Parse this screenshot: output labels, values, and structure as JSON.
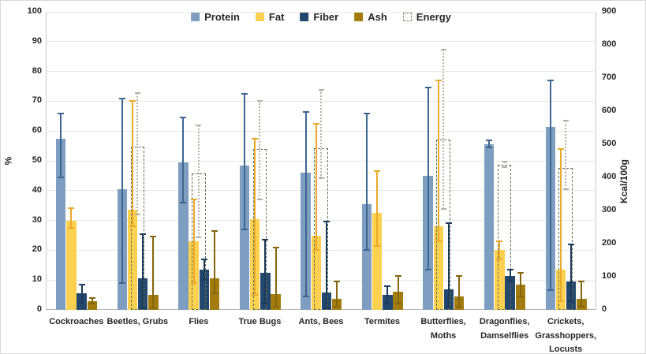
{
  "chart_data": {
    "type": "bar",
    "title": "",
    "left_axis": {
      "label": "%",
      "min": 0,
      "max": 100,
      "step": 10
    },
    "right_axis": {
      "label": "Kcal/100g",
      "min": 0,
      "max": 900,
      "step": 100
    },
    "grid": true,
    "legend_position": "top-center",
    "categories": [
      "Cockroaches",
      "Beetles, Grubs",
      "Flies",
      "True Bugs",
      "Ants, Bees",
      "Termites",
      "Butterflies,\nMoths",
      "Dragonflies,\nDamselflies",
      "Crickets,\nGrasshoppers,\nLocusts"
    ],
    "series": [
      {
        "name": "Protein",
        "axis": "left",
        "style": "solid",
        "color": "#7e9dc0",
        "error_color": "#3e6591",
        "values": [
          57.5,
          40.5,
          49.5,
          48.5,
          46.0,
          35.5,
          45.0,
          55.5,
          61.5
        ],
        "err_lo": [
          44.5,
          9.0,
          36.0,
          27.0,
          4.5,
          20.0,
          13.5,
          54.5,
          6.5
        ],
        "err_hi": [
          66.0,
          71.0,
          64.5,
          72.5,
          66.5,
          66.0,
          74.5,
          57.0,
          77.0
        ]
      },
      {
        "name": "Fat",
        "axis": "left",
        "style": "solid",
        "color": "#fcd150",
        "error_color": "#eaa92a",
        "values": [
          30.0,
          33.5,
          23.0,
          30.5,
          25.0,
          32.5,
          28.0,
          20.0,
          13.5
        ],
        "err_lo": [
          27.5,
          28.0,
          9.0,
          5.0,
          20.0,
          21.5,
          23.0,
          17.0,
          3.0
        ],
        "err_hi": [
          34.0,
          70.0,
          37.0,
          57.5,
          62.5,
          46.5,
          77.0,
          23.0,
          54.0
        ]
      },
      {
        "name": "Fiber",
        "axis": "left",
        "style": "solid",
        "color": "#24476d",
        "error_color": "#1c3a5c",
        "values": [
          5.5,
          10.5,
          13.5,
          12.5,
          5.8,
          5.0,
          6.8,
          11.5,
          9.5
        ],
        "err_lo": [
          2.5,
          0.5,
          10.0,
          2.0,
          0.5,
          2.0,
          1.0,
          9.5,
          3.0
        ],
        "err_hi": [
          8.5,
          25.5,
          17.0,
          23.5,
          29.5,
          8.0,
          29.0,
          13.5,
          22.0
        ]
      },
      {
        "name": "Ash",
        "axis": "left",
        "style": "solid",
        "color": "#a37c10",
        "error_color": "#86660d",
        "values": [
          3.0,
          5.0,
          10.5,
          5.3,
          3.8,
          6.0,
          4.5,
          8.5,
          3.7
        ],
        "err_lo": [
          2.0,
          0.5,
          5.5,
          1.0,
          1.0,
          2.0,
          1.0,
          4.5,
          1.0
        ],
        "err_hi": [
          4.0,
          24.5,
          26.5,
          21.0,
          9.5,
          11.5,
          11.5,
          12.5,
          9.5
        ]
      },
      {
        "name": "Energy",
        "axis": "right",
        "style": "outline",
        "color": "#5f6e51",
        "error_color": "#b5b3a7",
        "values": [
          null,
          492,
          413,
          485,
          489,
          null,
          515,
          437,
          429
        ],
        "err_lo": [
          null,
          287,
          220,
          333,
          397,
          null,
          305,
          430,
          364
        ],
        "err_hi": [
          null,
          655,
          558,
          630,
          665,
          null,
          785,
          448,
          571
        ]
      }
    ]
  }
}
